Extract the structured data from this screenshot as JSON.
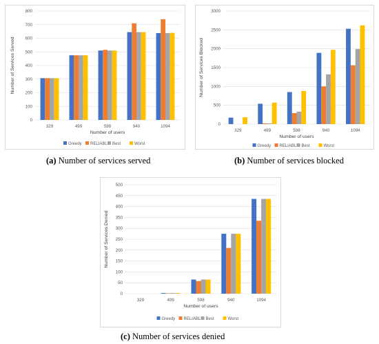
{
  "captions": [
    {
      "letter": "(a)",
      "text": " Number of services served"
    },
    {
      "letter": "(b)",
      "text": " Number of services blocked"
    },
    {
      "letter": "(c)",
      "text": " Number of services denied"
    }
  ],
  "colors": {
    "Greedy": "#4472c4",
    "RELIABLE": "#ed7d31",
    "Best": "#a5a5a5",
    "Worst": "#ffc000"
  },
  "chart_data": [
    {
      "type": "bar",
      "categories": [
        "329",
        "499",
        "598",
        "940",
        "1094"
      ],
      "xlabel": "Number of users",
      "ylabel": "Number of Services Served",
      "ylim": [
        0,
        800
      ],
      "yticks": [
        0,
        100,
        200,
        300,
        400,
        500,
        600,
        700,
        800
      ],
      "grid": true,
      "legend_position": "bottom",
      "series": [
        {
          "name": "Greedy",
          "values": [
            307,
            475,
            510,
            645,
            638
          ]
        },
        {
          "name": "RELIABLE",
          "values": [
            307,
            475,
            515,
            710,
            740
          ]
        },
        {
          "name": "Best",
          "values": [
            307,
            475,
            510,
            645,
            638
          ]
        },
        {
          "name": "Worst",
          "values": [
            307,
            475,
            510,
            645,
            640
          ]
        }
      ]
    },
    {
      "type": "bar",
      "categories": [
        "329",
        "499",
        "598",
        "940",
        "1094"
      ],
      "xlabel": "Number of users",
      "ylabel": "Number of Services Blocked",
      "ylim": [
        0,
        3000
      ],
      "yticks": [
        0,
        500,
        1000,
        1500,
        2000,
        2500,
        3000
      ],
      "grid": true,
      "legend_position": "bottom",
      "series": [
        {
          "name": "Greedy",
          "values": [
            170,
            540,
            850,
            1890,
            2530
          ]
        },
        {
          "name": "RELIABLE",
          "values": [
            0,
            20,
            290,
            1000,
            1560
          ]
        },
        {
          "name": "Best",
          "values": [
            0,
            20,
            330,
            1320,
            1990
          ]
        },
        {
          "name": "Worst",
          "values": [
            180,
            570,
            880,
            1970,
            2620
          ]
        }
      ]
    },
    {
      "type": "bar",
      "categories": [
        "329",
        "499",
        "598",
        "940",
        "1094"
      ],
      "xlabel": "Number of users",
      "ylabel": "Number of Services Denied",
      "ylim": [
        0,
        500
      ],
      "yticks": [
        0,
        50,
        100,
        150,
        200,
        250,
        300,
        350,
        400,
        450,
        500
      ],
      "grid": true,
      "legend_position": "bottom",
      "series": [
        {
          "name": "Greedy",
          "values": [
            0,
            3,
            65,
            275,
            435
          ]
        },
        {
          "name": "RELIABLE",
          "values": [
            0,
            2,
            58,
            210,
            335
          ]
        },
        {
          "name": "Best",
          "values": [
            0,
            3,
            65,
            275,
            435
          ]
        },
        {
          "name": "Worst",
          "values": [
            0,
            3,
            65,
            275,
            435
          ]
        }
      ]
    }
  ]
}
